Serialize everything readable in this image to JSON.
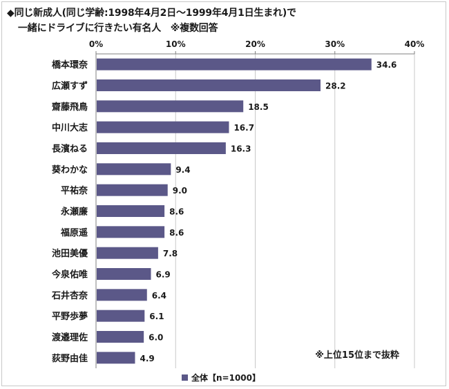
{
  "header": {
    "line1": "◆同じ新成人(同じ学齢:1998年4月2日～1999年4月1日生まれ)で",
    "line2": "一緒にドライブに行きたい有名人　※複数回答"
  },
  "colors": {
    "bar": "#5b5888",
    "axis": "#7f7f7f",
    "grid": "#c8c8c8"
  },
  "chart_data": {
    "type": "bar",
    "orientation": "horizontal",
    "categories": [
      "橋本環奈",
      "広瀬すず",
      "齋藤飛鳥",
      "中川大志",
      "長濱ねる",
      "葵わかな",
      "平祐奈",
      "永瀬廉",
      "福原遥",
      "池田美優",
      "今泉佑唯",
      "石井杏奈",
      "平野歩夢",
      "渡邉理佐",
      "荻野由佳"
    ],
    "series": [
      {
        "name": "全体【n=1000】",
        "values": [
          34.6,
          28.2,
          18.5,
          16.7,
          16.3,
          9.4,
          9.0,
          8.6,
          8.6,
          7.8,
          6.9,
          6.4,
          6.1,
          6.0,
          4.9
        ],
        "value_labels": [
          "34.6",
          "28.2",
          "18.5",
          "16.7",
          "16.3",
          "9.4",
          "9.0",
          "8.6",
          "8.6",
          "7.8",
          "6.9",
          "6.4",
          "6.1",
          "6.0",
          "4.9"
        ]
      }
    ],
    "xlim": [
      0,
      40
    ],
    "xticks": [
      0,
      10,
      20,
      30,
      40
    ],
    "xtick_labels": [
      "0%",
      "10%",
      "20%",
      "30%",
      "40%"
    ],
    "grid": true,
    "axis_position": "top",
    "legend_position": "bottom-center",
    "annotation": "※上位15位まで抜粋"
  }
}
